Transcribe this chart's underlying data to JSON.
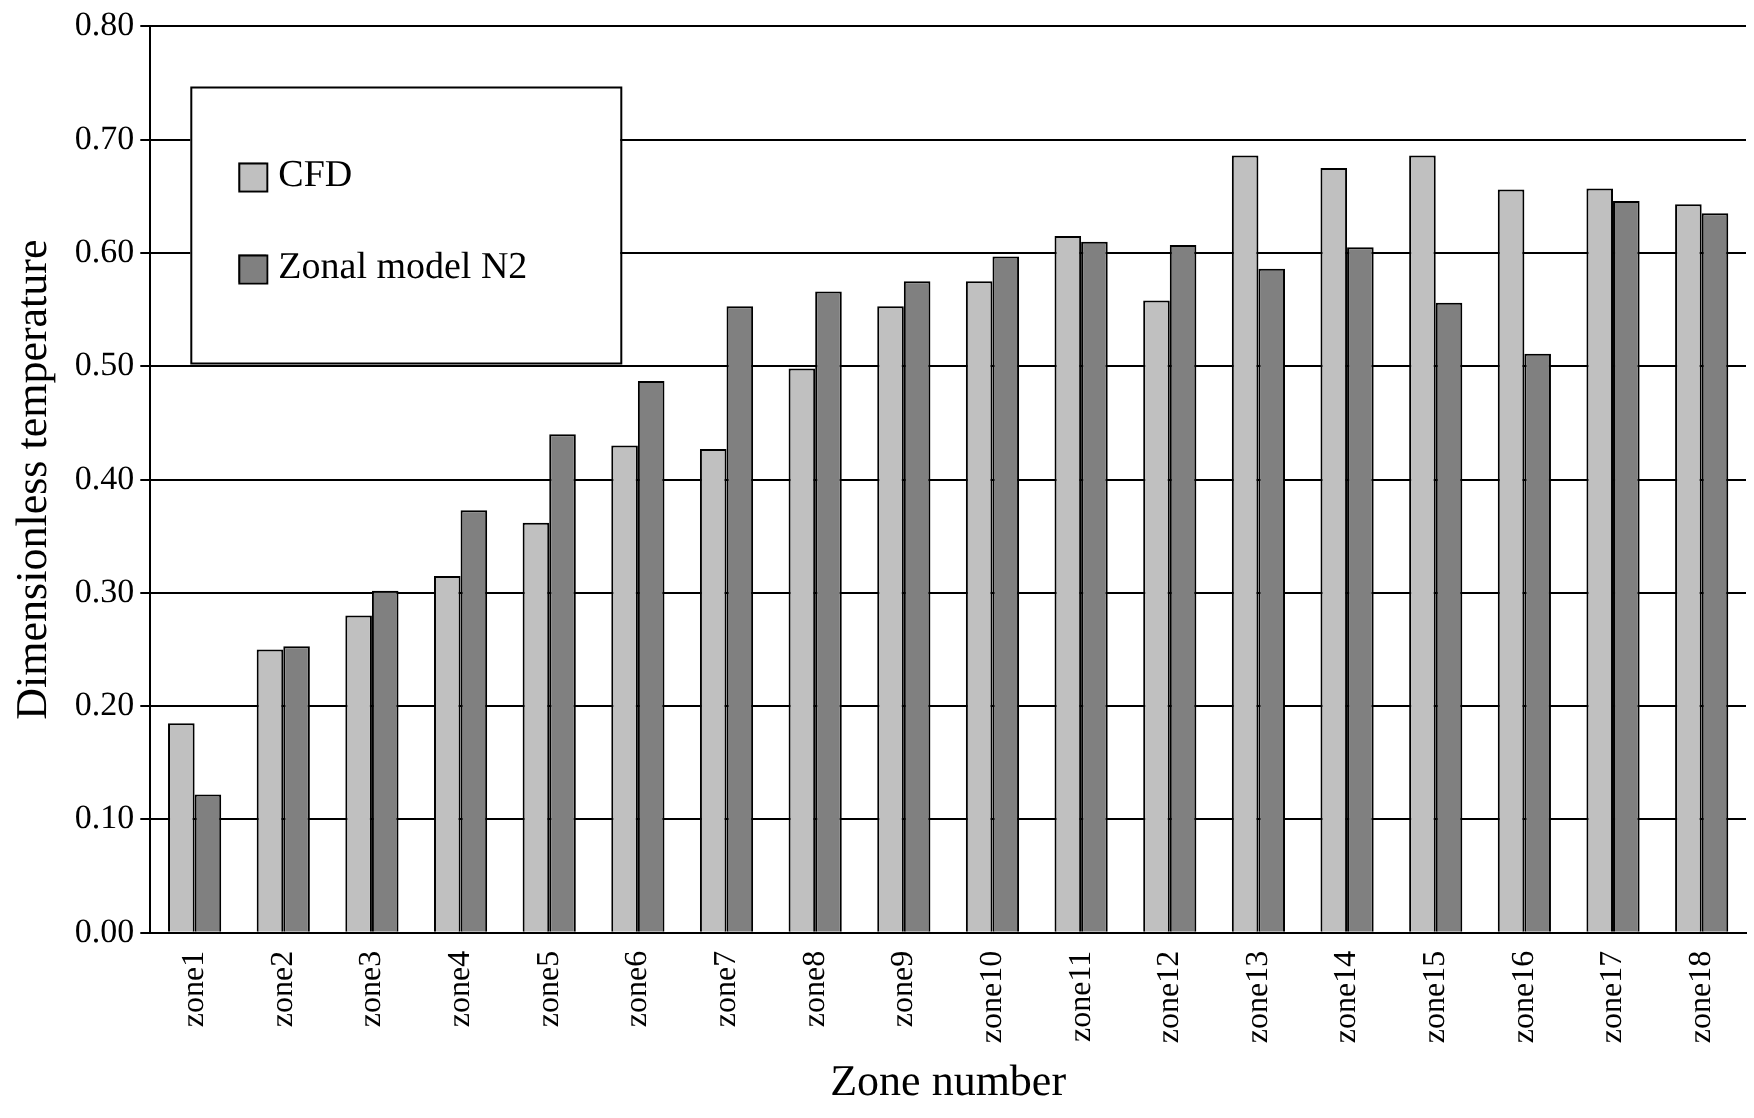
{
  "chart_data": {
    "type": "bar",
    "xlabel": "Zone number",
    "ylabel": "Dimensionless temperature",
    "categories": [
      "zone1",
      "zone2",
      "zone3",
      "zone4",
      "zone5",
      "zone6",
      "zone7",
      "zone8",
      "zone9",
      "zone10",
      "zone11",
      "zone12",
      "zone13",
      "zone14",
      "zone15",
      "zone16",
      "zone17",
      "zone18"
    ],
    "series": [
      {
        "name": "CFD",
        "color": "#c0c0c0",
        "values": [
          0.185,
          0.25,
          0.28,
          0.315,
          0.362,
          0.43,
          0.427,
          0.498,
          0.553,
          0.575,
          0.615,
          0.558,
          0.686,
          0.675,
          0.686,
          0.656,
          0.657,
          0.643
        ]
      },
      {
        "name": "Zonal model N2",
        "color": "#808080",
        "values": [
          0.122,
          0.253,
          0.302,
          0.373,
          0.44,
          0.487,
          0.553,
          0.566,
          0.575,
          0.597,
          0.61,
          0.607,
          0.586,
          0.605,
          0.556,
          0.511,
          0.646,
          0.635
        ]
      }
    ],
    "ylim": [
      0,
      0.8
    ],
    "yticks": [
      {
        "value": 0,
        "label": "0.00"
      },
      {
        "value": 0.1,
        "label": "0.10"
      },
      {
        "value": 0.2,
        "label": "0.20"
      },
      {
        "value": 0.3,
        "label": "0.30"
      },
      {
        "value": 0.4,
        "label": "0.40"
      },
      {
        "value": 0.5,
        "label": "0.50"
      },
      {
        "value": 0.6,
        "label": "0.60"
      },
      {
        "value": 0.7,
        "label": "0.70"
      },
      {
        "value": 0.8,
        "label": "0.80"
      }
    ],
    "grid": "y",
    "legend": "top left"
  }
}
